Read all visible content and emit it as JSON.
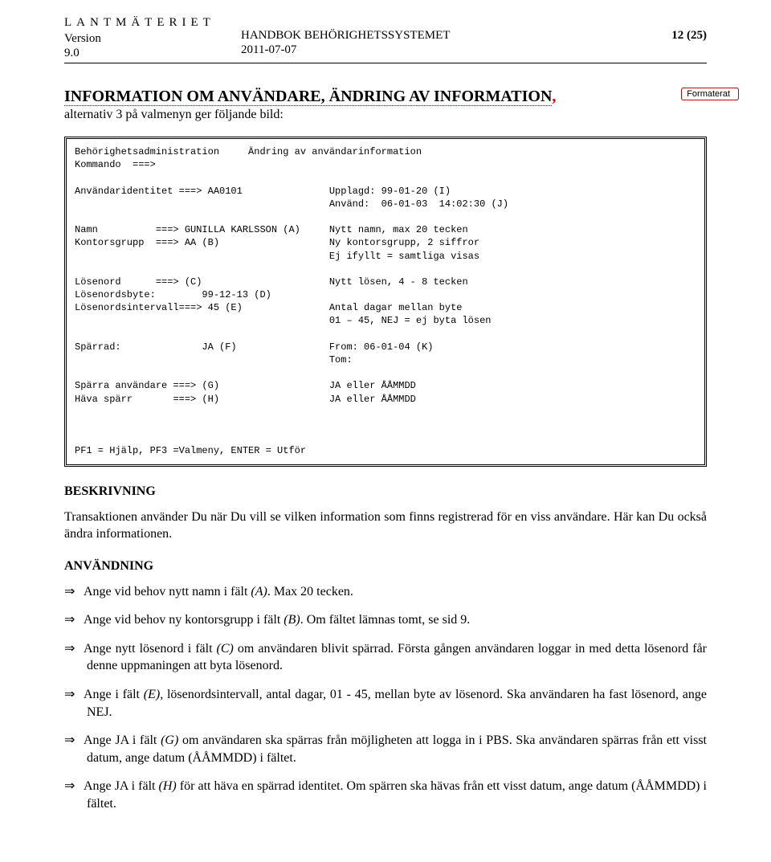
{
  "header": {
    "org": "LANTMÄTERIET",
    "version_label": "Version",
    "version_num": "9.0",
    "title": "HANDBOK BEHÖRIGHETSSYSTEMET",
    "date": "2011-07-07",
    "page": "12 (25)"
  },
  "main_heading": "INFORMATION OM ANVÄNDARE, ÄNDRING AV INFORMATION",
  "comma": ",",
  "sub_heading": "alternativ 3 på valmenyn ger följande bild:",
  "format_box": "Formaterat",
  "terminal": "Behörighetsadministration     Ändring av användarinformation\nKommando  ===>\n\nAnvändaridentitet ===> AA0101               Upplagd: 99-01-20 (I)\n                                            Använd:  06-01-03  14:02:30 (J)\n\nNamn          ===> GUNILLA KARLSSON (A)     Nytt namn, max 20 tecken\nKontorsgrupp  ===> AA (B)                   Ny kontorsgrupp, 2 siffror\n                                            Ej ifyllt = samtliga visas\n\nLösenord      ===> (C)                      Nytt lösen, 4 - 8 tecken\nLösenordsbyte:        99-12-13 (D)\nLösenordsintervall===> 45 (E)               Antal dagar mellan byte\n                                            01 – 45, NEJ = ej byta lösen\n\nSpärrad:              JA (F)                From: 06-01-04 (K)\n                                            Tom:\n\nSpärra användare ===> (G)                   JA eller ÅÅMMDD\nHäva spärr       ===> (H)                   JA eller ÅÅMMDD\n\n\n\nPF1 = Hjälp, PF3 =Valmeny, ENTER = Utför",
  "sections": {
    "beskrivning_heading": "BESKRIVNING",
    "beskrivning_text": "Transaktionen använder Du när Du vill se vilken information som finns registrerad för en viss användare. Här kan Du också ändra informationen.",
    "anvandning_heading": "ANVÄNDNING"
  },
  "bullets": {
    "b1_a": "Ange vid behov nytt namn i fält ",
    "b1_i": "(A)",
    "b1_b": ". Max 20 tecken.",
    "b2_a": "Ange vid behov ny kontorsgrupp i fält ",
    "b2_i": "(B)",
    "b2_b": ". Om fältet lämnas tomt, se sid 9.",
    "b3_a": "Ange nytt lösenord i fält ",
    "b3_i": "(C)",
    "b3_b": " om användaren blivit spärrad. Första gången användaren loggar in med detta lösenord får denne uppmaningen att byta lösenord.",
    "b4_a": "Ange i fält ",
    "b4_i": "(E)",
    "b4_b": ", lösenordsintervall, antal dagar, 01 - 45, mellan byte av lösenord. Ska användaren ha fast lösenord, ange NEJ.",
    "b5_a": "Ange JA i fält ",
    "b5_i": "(G)",
    "b5_b": " om användaren ska spärras från möjligheten att logga in i PBS. Ska användaren spärras från ett visst datum, ange datum (ÅÅMMDD) i fältet.",
    "b6_a": "Ange JA i fält ",
    "b6_i": "(H)",
    "b6_b": " för att häva en spärrad identitet. Om spärren ska hävas från ett visst datum, ange datum (ÅÅMMDD) i fältet."
  },
  "arrow": "⇒"
}
